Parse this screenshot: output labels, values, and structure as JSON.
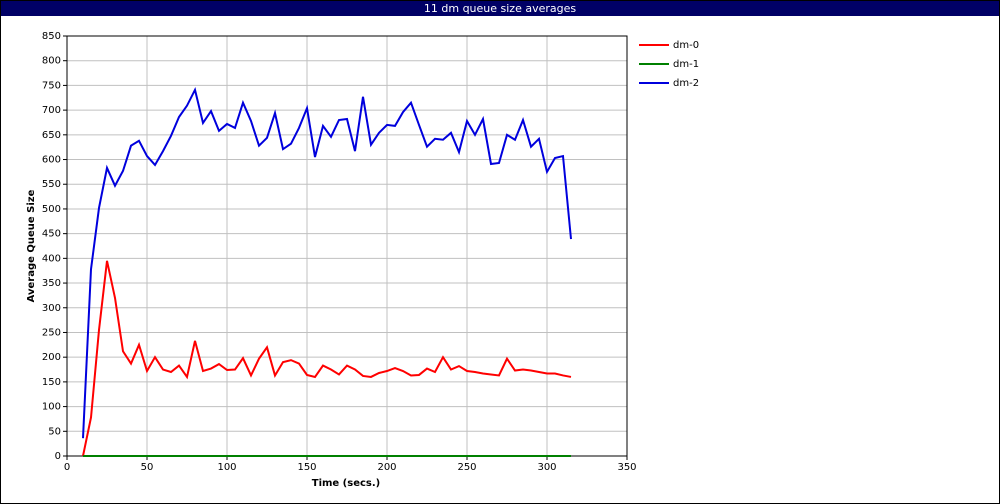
{
  "chart_data": {
    "type": "line",
    "title": "11 dm queue size averages",
    "x_label": "Time (secs.)",
    "y_label": "Average Queue Size",
    "x": [
      10,
      15,
      20,
      25,
      30,
      35,
      40,
      45,
      50,
      55,
      60,
      65,
      70,
      75,
      80,
      85,
      90,
      95,
      100,
      105,
      110,
      115,
      120,
      125,
      130,
      135,
      140,
      145,
      150,
      155,
      160,
      165,
      170,
      175,
      180,
      185,
      190,
      195,
      200,
      205,
      210,
      215,
      220,
      225,
      230,
      235,
      240,
      245,
      250,
      255,
      260,
      265,
      270,
      275,
      280,
      285,
      290,
      295,
      300,
      305,
      310,
      315
    ],
    "series": [
      {
        "name": "dm-0",
        "color": "#ff0000",
        "values": [
          0,
          78,
          255,
          395,
          320,
          212,
          187,
          225,
          172,
          200,
          175,
          170,
          183,
          160,
          233,
          172,
          177,
          186,
          174,
          175,
          198,
          163,
          197,
          220,
          163,
          190,
          194,
          187,
          164,
          160,
          183,
          175,
          165,
          183,
          175,
          162,
          160,
          168,
          172,
          178,
          172,
          163,
          164,
          177,
          170,
          200,
          175,
          182,
          172,
          170,
          167,
          165,
          163,
          197,
          173,
          175,
          173,
          170,
          167,
          167,
          163,
          160
        ]
      },
      {
        "name": "dm-1",
        "color": "#008000",
        "values": [
          0,
          0,
          0,
          0,
          0,
          0,
          0,
          0,
          0,
          0,
          0,
          0,
          0,
          0,
          0,
          0,
          0,
          0,
          0,
          0,
          0,
          0,
          0,
          0,
          0,
          0,
          0,
          0,
          0,
          0,
          0,
          0,
          0,
          0,
          0,
          0,
          0,
          0,
          0,
          0,
          0,
          0,
          0,
          0,
          0,
          0,
          0,
          0,
          0,
          0,
          0,
          0,
          0,
          0,
          0,
          0,
          0,
          0,
          0,
          0,
          0,
          0
        ]
      },
      {
        "name": "dm-2",
        "color": "#0000dd",
        "values": [
          36,
          378,
          502,
          583,
          547,
          577,
          628,
          638,
          607,
          589,
          617,
          648,
          686,
          709,
          741,
          674,
          698,
          658,
          672,
          664,
          715,
          678,
          628,
          644,
          694,
          621,
          632,
          664,
          704,
          605,
          668,
          646,
          680,
          682,
          617,
          727,
          630,
          654,
          670,
          668,
          696,
          715,
          670,
          626,
          642,
          640,
          654,
          615,
          678,
          650,
          682,
          591,
          593,
          650,
          640,
          680,
          626,
          642,
          575,
          603,
          607,
          439
        ]
      }
    ],
    "xlim": [
      0,
      350
    ],
    "xticks": [
      0,
      50,
      100,
      150,
      200,
      250,
      300,
      350
    ],
    "ylim": [
      0,
      850
    ],
    "yticks": [
      0,
      50,
      100,
      150,
      200,
      250,
      300,
      350,
      400,
      450,
      500,
      550,
      600,
      650,
      700,
      750,
      800,
      850
    ],
    "grid": true,
    "legend": "right"
  }
}
